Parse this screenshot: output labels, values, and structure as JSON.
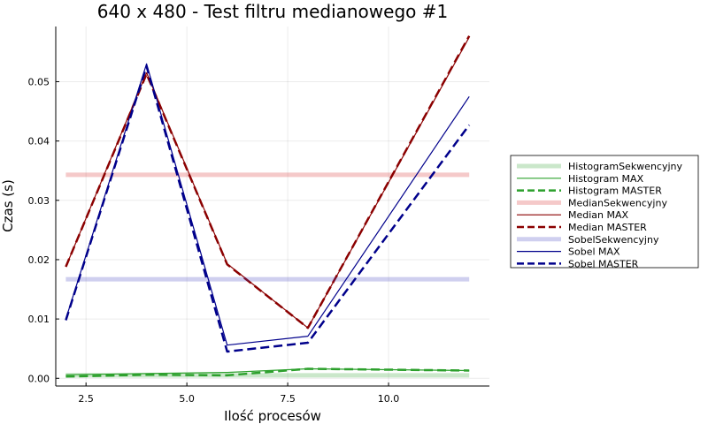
{
  "chart_data": {
    "type": "line",
    "title": "640 x 480 - Test filtru medianowego #1",
    "xlabel": "Ilość procesów",
    "ylabel": "Czas (s)",
    "xlim": [
      1.75,
      12.5
    ],
    "ylim": [
      -0.0013,
      0.0593
    ],
    "x_ticks": [
      2.5,
      5.0,
      7.5,
      10.0
    ],
    "x_tick_labels": [
      "2.5",
      "5.0",
      "7.5",
      "10.0"
    ],
    "y_ticks": [
      0.0,
      0.01,
      0.02,
      0.03,
      0.04,
      0.05
    ],
    "y_tick_labels": [
      "0.00",
      "0.01",
      "0.02",
      "0.03",
      "0.04",
      "0.05"
    ],
    "grid": true,
    "legend_position": "outside-right",
    "series": [
      {
        "name": "HistogramSekwencyjny",
        "color": "#2ca02c",
        "style": "thick-faded",
        "x": [
          2,
          12
        ],
        "y": [
          0.0005,
          0.0005
        ]
      },
      {
        "name": "Histogram MAX",
        "color": "#2ca02c",
        "style": "thin",
        "x": [
          2,
          4,
          6,
          8,
          12
        ],
        "y": [
          0.0006,
          0.0008,
          0.001,
          0.0016,
          0.0013
        ]
      },
      {
        "name": "Histogram MASTER",
        "color": "#2ca02c",
        "style": "dashed",
        "x": [
          2,
          4,
          6,
          8,
          12
        ],
        "y": [
          0.0003,
          0.0006,
          0.0005,
          0.0016,
          0.0013
        ]
      },
      {
        "name": "MedianSekwencyjny",
        "color": "#d62728",
        "style": "thick-faded",
        "x": [
          2,
          12
        ],
        "y": [
          0.0343,
          0.0343
        ]
      },
      {
        "name": "Median MAX",
        "color": "#8b0000",
        "style": "thin",
        "x": [
          2,
          4,
          6,
          8,
          12
        ],
        "y": [
          0.0188,
          0.0515,
          0.0193,
          0.0085,
          0.0575
        ]
      },
      {
        "name": "Median MASTER",
        "color": "#8b0000",
        "style": "dashed",
        "x": [
          2,
          4,
          6,
          8,
          12
        ],
        "y": [
          0.0188,
          0.0513,
          0.0192,
          0.0085,
          0.0577
        ]
      },
      {
        "name": "SobelSekwencyjny",
        "color": "#3f3fbf",
        "style": "thick-faded",
        "x": [
          2,
          12
        ],
        "y": [
          0.0167,
          0.0167
        ]
      },
      {
        "name": "Sobel MAX",
        "color": "#00008b",
        "style": "thin",
        "x": [
          2,
          4,
          6,
          8,
          12
        ],
        "y": [
          0.01,
          0.053,
          0.0056,
          0.0071,
          0.0475
        ]
      },
      {
        "name": "Sobel MASTER",
        "color": "#00008b",
        "style": "dashed",
        "x": [
          2,
          4,
          6,
          8,
          12
        ],
        "y": [
          0.0098,
          0.0526,
          0.0045,
          0.006,
          0.0427
        ]
      }
    ]
  }
}
